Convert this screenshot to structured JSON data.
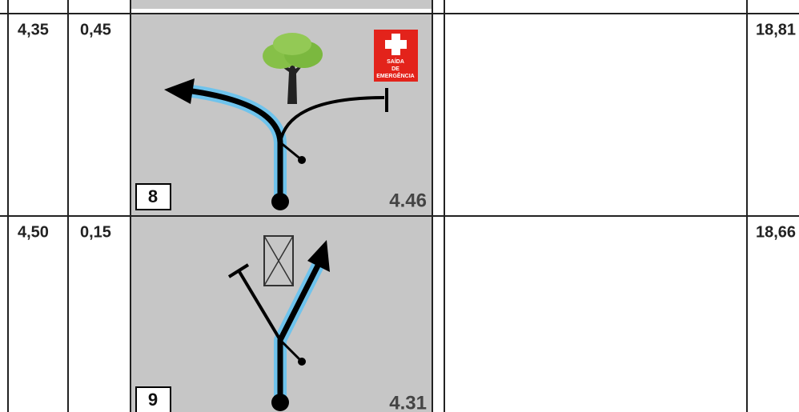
{
  "table": {
    "rows": [
      {
        "col1": "4,35",
        "col2": "0,45",
        "step": "8",
        "distance": "4.46",
        "col5": "18,81",
        "sign": [
          "SAÍDA",
          "DE",
          "EMERGÊNCIA"
        ]
      },
      {
        "col1": "4,50",
        "col2": "0,15",
        "step": "9",
        "distance": "4.31",
        "col5": "18,66"
      }
    ]
  }
}
